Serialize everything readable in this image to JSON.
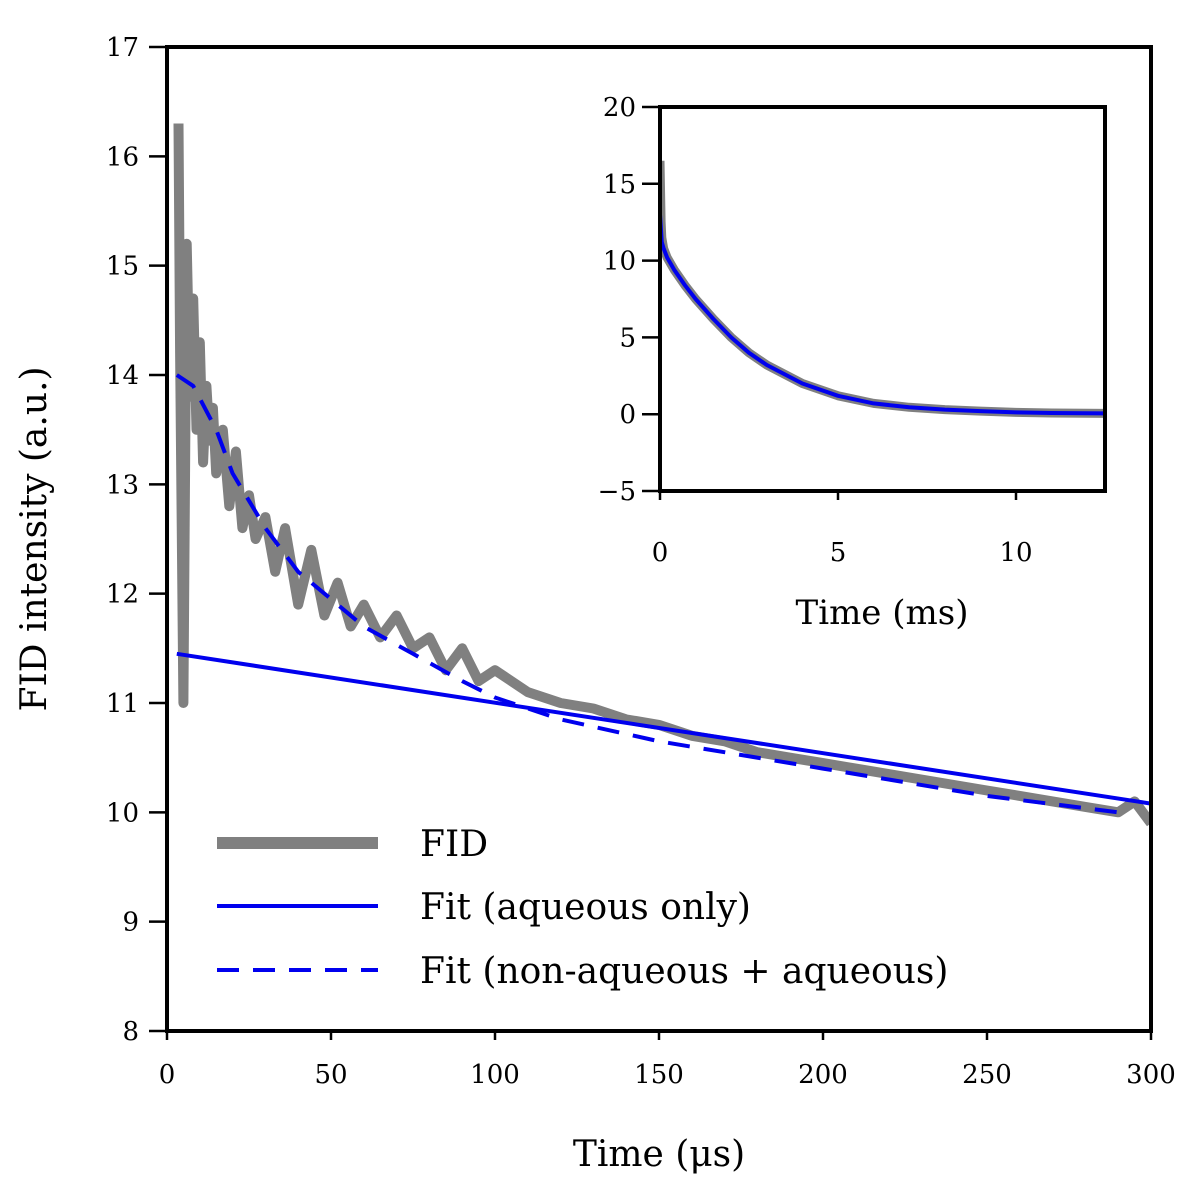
{
  "chart_data": [
    {
      "id": "main",
      "type": "line",
      "xlabel": "Time (μs)",
      "ylabel": "FID intensity (a.u.)",
      "xlim": [
        0,
        300
      ],
      "ylim": [
        8,
        17
      ],
      "xticks": [
        0,
        50,
        100,
        150,
        200,
        250,
        300
      ],
      "yticks": [
        8,
        9,
        10,
        11,
        12,
        13,
        14,
        15,
        16,
        17
      ],
      "grid": false,
      "legend_position": "bottom-left",
      "series": [
        {
          "name": "FID",
          "style": "thick-solid",
          "color": "#808080",
          "x": [
            3.5,
            4,
            5,
            6,
            7,
            8,
            9,
            10,
            11,
            12,
            13,
            14,
            15,
            17,
            19,
            21,
            23,
            25,
            27,
            30,
            33,
            36,
            40,
            44,
            48,
            52,
            56,
            60,
            65,
            70,
            75,
            80,
            85,
            90,
            95,
            100,
            110,
            120,
            130,
            140,
            150,
            160,
            170,
            180,
            190,
            200,
            210,
            220,
            230,
            240,
            250,
            260,
            270,
            280,
            290,
            295,
            300
          ],
          "y": [
            16.3,
            14.2,
            11.0,
            15.2,
            13.8,
            14.7,
            13.5,
            14.3,
            13.2,
            13.9,
            13.4,
            13.7,
            13.1,
            13.5,
            12.8,
            13.3,
            12.6,
            12.9,
            12.5,
            12.7,
            12.2,
            12.6,
            11.9,
            12.4,
            11.8,
            12.1,
            11.7,
            11.9,
            11.6,
            11.8,
            11.5,
            11.6,
            11.3,
            11.5,
            11.2,
            11.3,
            11.1,
            11.0,
            10.95,
            10.85,
            10.8,
            10.7,
            10.65,
            10.55,
            10.5,
            10.45,
            10.4,
            10.35,
            10.3,
            10.25,
            10.2,
            10.15,
            10.1,
            10.05,
            10.0,
            10.1,
            9.9
          ]
        },
        {
          "name": "Fit (aqueous only)",
          "style": "solid",
          "color": "#0000ee",
          "x": [
            3,
            300
          ],
          "y": [
            11.45,
            10.08
          ]
        },
        {
          "name": "Fit (non-aqueous + aqueous)",
          "style": "dashed",
          "color": "#0000ee",
          "x": [
            3,
            8,
            15,
            20,
            30,
            40,
            50,
            60,
            75,
            90,
            100,
            120,
            150,
            200,
            250,
            290
          ],
          "y": [
            14.0,
            13.9,
            13.5,
            13.1,
            12.6,
            12.2,
            11.95,
            11.7,
            11.45,
            11.2,
            11.05,
            10.85,
            10.65,
            10.4,
            10.15,
            10.0
          ]
        }
      ]
    },
    {
      "id": "inset",
      "type": "line",
      "xlabel": "Time (ms)",
      "ylabel": "",
      "xlim": [
        0,
        12.5
      ],
      "ylim": [
        -5,
        20
      ],
      "xticks": [
        0,
        5,
        10
      ],
      "yticks": [
        -5,
        0,
        5,
        10,
        15,
        20
      ],
      "grid": false,
      "series": [
        {
          "name": "FID",
          "style": "thick-solid",
          "color": "#808080",
          "x": [
            0.0,
            0.03,
            0.05,
            0.1,
            0.2,
            0.4,
            0.7,
            1.0,
            1.5,
            2.0,
            2.5,
            3.0,
            4.0,
            5.0,
            6.0,
            7.0,
            8.0,
            9.0,
            10.0,
            11.0,
            12.5
          ],
          "y": [
            16.5,
            12.5,
            11.5,
            10.8,
            10.2,
            9.4,
            8.4,
            7.5,
            6.2,
            5.0,
            4.0,
            3.2,
            2.0,
            1.2,
            0.7,
            0.45,
            0.3,
            0.2,
            0.12,
            0.08,
            0.05
          ]
        },
        {
          "name": "Fit",
          "style": "solid",
          "color": "#0000ee",
          "x": [
            0.0,
            0.05,
            0.1,
            0.2,
            0.4,
            0.7,
            1.0,
            1.5,
            2.0,
            2.5,
            3.0,
            4.0,
            5.0,
            6.0,
            7.0,
            8.0,
            9.0,
            10.0,
            11.0,
            12.5
          ],
          "y": [
            13.0,
            11.2,
            10.8,
            10.2,
            9.4,
            8.4,
            7.5,
            6.2,
            5.0,
            4.0,
            3.2,
            2.0,
            1.2,
            0.7,
            0.45,
            0.3,
            0.2,
            0.12,
            0.08,
            0.05
          ]
        }
      ]
    }
  ]
}
